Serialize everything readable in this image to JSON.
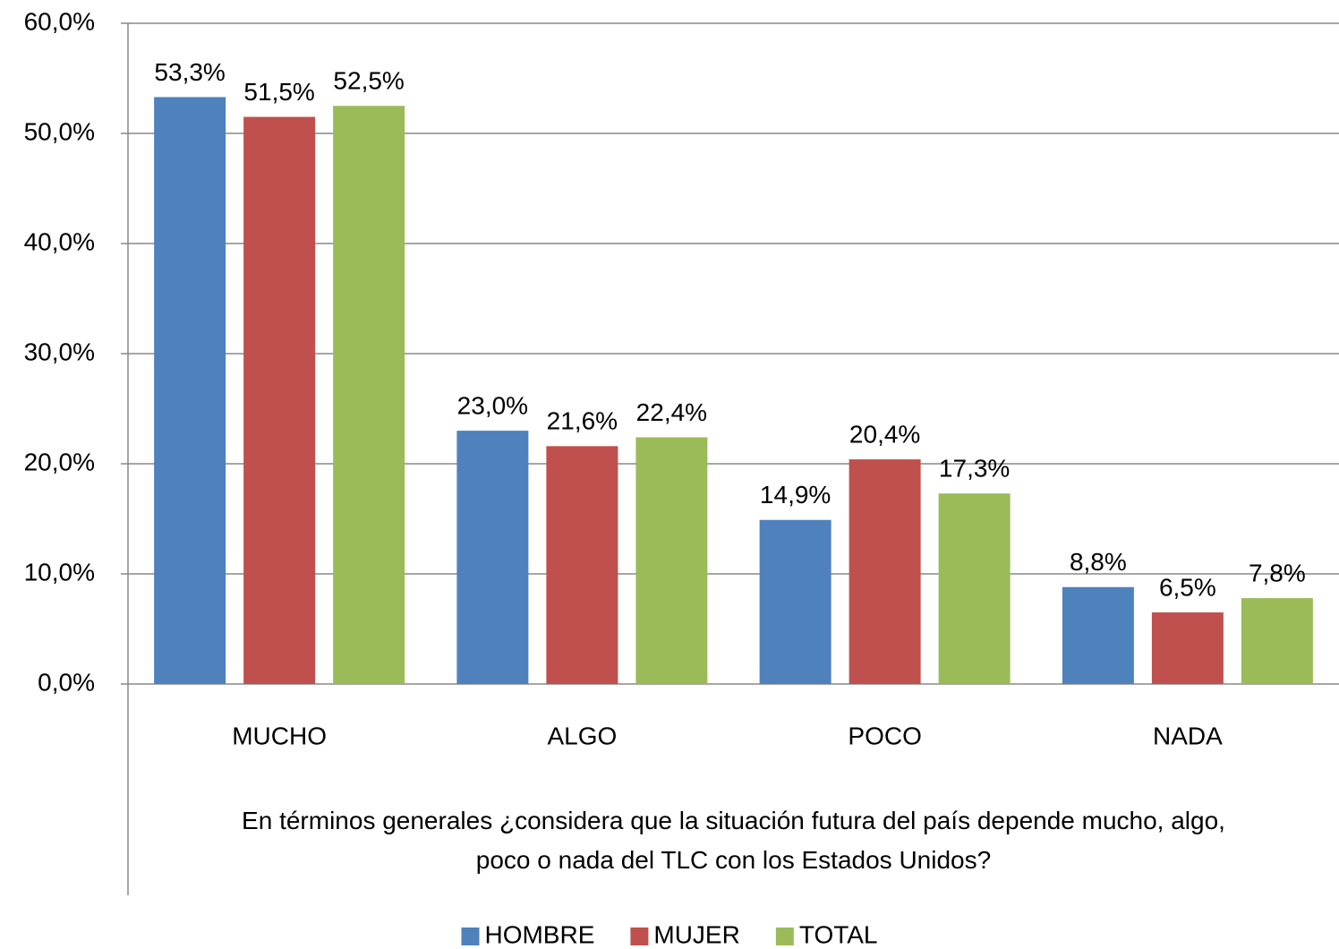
{
  "chart_data": {
    "type": "bar",
    "x_label": "En términos generales ¿considera que la situación futura del país depende mucho, algo, poco o nada del TLC con los Estados Unidos?",
    "categories": [
      "MUCHO",
      "ALGO",
      "POCO",
      "NADA"
    ],
    "series": [
      {
        "name": "HOMBRE",
        "color": "#4f81bd",
        "values": [
          53.3,
          23.0,
          14.9,
          8.8
        ],
        "value_labels": [
          "53,3%",
          "23,0%",
          "14,9%",
          "8,8%"
        ]
      },
      {
        "name": "MUJER",
        "color": "#c0504d",
        "values": [
          51.5,
          21.6,
          20.4,
          6.5
        ],
        "value_labels": [
          "51,5%",
          "21,6%",
          "20,4%",
          "6,5%"
        ]
      },
      {
        "name": "TOTAL",
        "color": "#9bbb59",
        "values": [
          52.5,
          22.4,
          17.3,
          7.8
        ],
        "value_labels": [
          "52,5%",
          "22,4%",
          "17,3%",
          "7,8%"
        ]
      }
    ],
    "ylim": [
      0,
      60
    ],
    "yticks": [
      {
        "value": 0,
        "label": "0,0%"
      },
      {
        "value": 10,
        "label": "10,0%"
      },
      {
        "value": 20,
        "label": "20,0%"
      },
      {
        "value": 30,
        "label": "30,0%"
      },
      {
        "value": 40,
        "label": "40,0%"
      },
      {
        "value": 50,
        "label": "50,0%"
      },
      {
        "value": 60,
        "label": "60,0%"
      }
    ],
    "grid": true,
    "legend": "bottom"
  }
}
